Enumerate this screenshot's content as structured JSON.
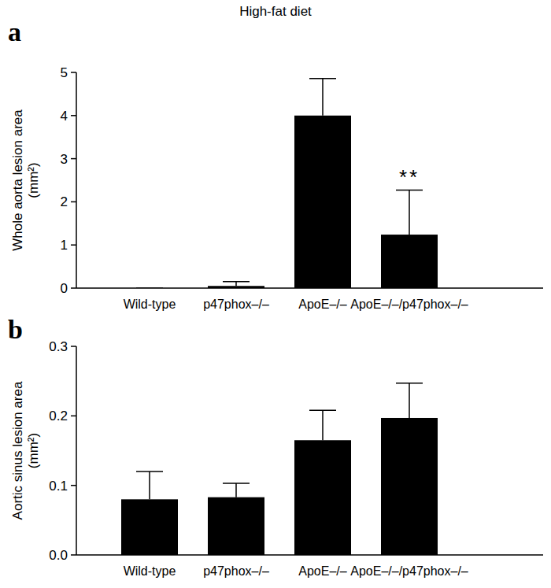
{
  "title": "High-fat diet",
  "chart_data": [
    {
      "type": "bar",
      "panel_label": "a",
      "ylabel": "Whole aorta lesion area (mm²)",
      "categories": [
        "Wild-type",
        "p47phox–/–",
        "ApoE–/–",
        "ApoE–/–/p47phox–/–"
      ],
      "values": [
        0,
        0.05,
        4.0,
        1.24
      ],
      "errors": [
        0,
        0.1,
        0.86,
        1.03
      ],
      "significance": [
        null,
        null,
        null,
        "**"
      ],
      "color": "#000000",
      "ylim": [
        0,
        5
      ],
      "yticks": [
        0,
        1,
        2,
        3,
        4,
        5
      ],
      "grid": false
    },
    {
      "type": "bar",
      "panel_label": "b",
      "ylabel": "Aortic sinus lesion area (mm²)",
      "categories": [
        "Wild-type",
        "p47phox–/–",
        "ApoE–/–",
        "ApoE–/–/p47phox–/–"
      ],
      "values": [
        0.08,
        0.083,
        0.165,
        0.197
      ],
      "errors": [
        0.04,
        0.02,
        0.043,
        0.05
      ],
      "color": "#000000",
      "ylim": [
        0,
        0.3
      ],
      "yticks": [
        {
          "value": 0,
          "label": "0.0"
        },
        0.1,
        0.2,
        0.3
      ],
      "grid": false
    }
  ]
}
